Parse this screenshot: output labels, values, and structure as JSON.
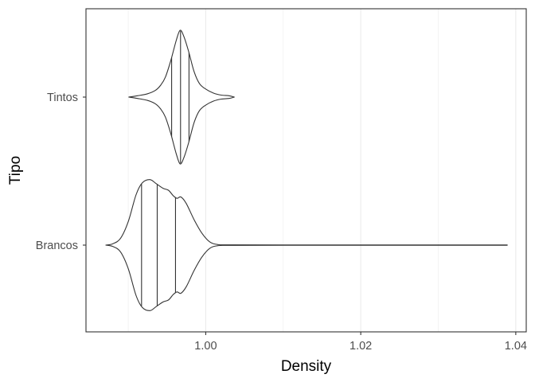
{
  "chart_data": {
    "type": "violin",
    "orientation": "horizontal",
    "xlabel": "Density",
    "ylabel": "Tipo",
    "xlim": [
      0.98455,
      1.04135
    ],
    "x_ticks": [
      1.0,
      1.02,
      1.04
    ],
    "x_tick_labels": [
      "1.00",
      "1.02",
      "1.04"
    ],
    "x_minor_ticks": [
      0.99,
      1.01,
      1.03
    ],
    "grid": true,
    "categories": [
      "Brancos",
      "Tintos"
    ],
    "colors": {
      "outline": "#333333",
      "fill": "#ffffff",
      "panel_border": "#333333",
      "grid": "#ebebeb"
    },
    "series": [
      {
        "name": "Brancos",
        "range": [
          0.98711,
          1.03898
        ],
        "quantiles": [
          0.99172,
          0.99374,
          0.9961
        ],
        "profile": [
          [
            0.98711,
            0.0
          ],
          [
            0.988,
            0.02
          ],
          [
            0.989,
            0.1
          ],
          [
            0.99,
            0.35
          ],
          [
            0.991,
            0.75
          ],
          [
            0.9918,
            0.93
          ],
          [
            0.9928,
            0.98
          ],
          [
            0.9936,
            0.92
          ],
          [
            0.9945,
            0.85
          ],
          [
            0.9952,
            0.82
          ],
          [
            0.9958,
            0.74
          ],
          [
            0.9963,
            0.7
          ],
          [
            0.9968,
            0.72
          ],
          [
            0.9975,
            0.62
          ],
          [
            0.9985,
            0.38
          ],
          [
            0.9995,
            0.18
          ],
          [
            1.0005,
            0.05
          ],
          [
            1.0015,
            0.01
          ],
          [
            1.003,
            0.004
          ],
          [
            1.01,
            0.003
          ],
          [
            1.0389,
            0.002
          ]
        ]
      },
      {
        "name": "Tintos",
        "range": [
          0.99007,
          1.00369
        ],
        "quantiles": [
          0.9956,
          0.99675,
          0.99784
        ],
        "profile": [
          [
            0.99007,
            0.0
          ],
          [
            0.9912,
            0.02
          ],
          [
            0.9925,
            0.05
          ],
          [
            0.9935,
            0.1
          ],
          [
            0.9942,
            0.18
          ],
          [
            0.9948,
            0.3
          ],
          [
            0.9955,
            0.55
          ],
          [
            0.9962,
            0.85
          ],
          [
            0.9967,
            1.0
          ],
          [
            0.9972,
            0.9
          ],
          [
            0.9978,
            0.68
          ],
          [
            0.9985,
            0.38
          ],
          [
            0.9992,
            0.2
          ],
          [
            1.0,
            0.12
          ],
          [
            1.001,
            0.06
          ],
          [
            1.002,
            0.03
          ],
          [
            1.003,
            0.02
          ],
          [
            1.00369,
            0.0
          ]
        ]
      }
    ]
  }
}
